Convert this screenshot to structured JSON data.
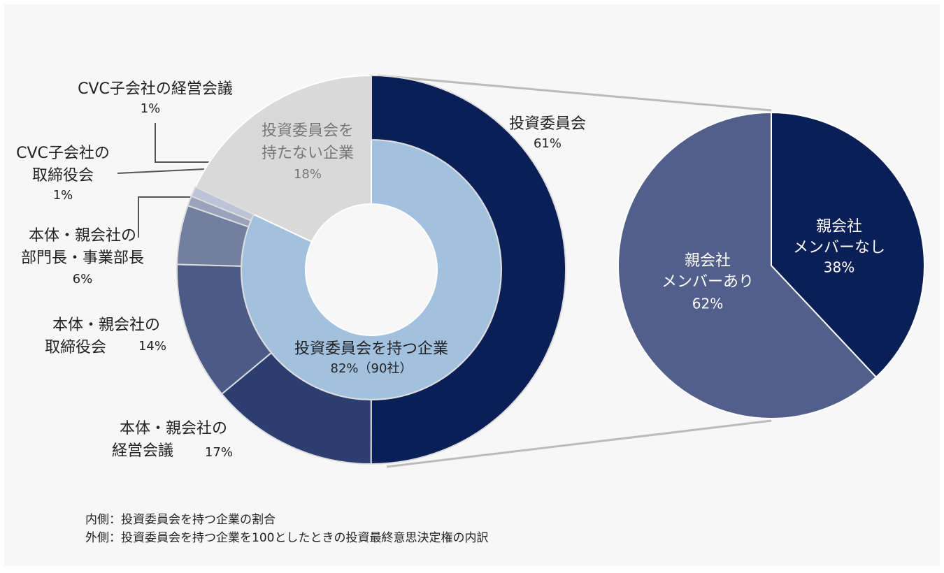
{
  "chart_data": [
    {
      "type": "donut",
      "inner": {
        "categories": [
          "投資委員会を持つ企業",
          "投資委員会を\n持たない企業"
        ],
        "values": [
          82,
          18
        ],
        "value_labels": [
          "82%（90社）",
          "18%"
        ],
        "colors": [
          "#a2c1df",
          "#d9d9d9"
        ]
      },
      "outer": {
        "categories": [
          "投資委員会",
          "本体・親会社の\n経営会議",
          "本体・親会社の\n取締役会",
          "本体・親会社の\n部門長・事業部長",
          "CVC子会社の\n取締役会",
          "CVC子会社の経営会議"
        ],
        "values": [
          61,
          17,
          14,
          6,
          1,
          1
        ],
        "value_labels": [
          "61%",
          "17%",
          "14%",
          "6%",
          "1%",
          "1%"
        ],
        "colors": [
          "#0b1f57",
          "#2c3d70",
          "#4c5b86",
          "#737f9f",
          "#9aa3bc",
          "#bcc3d6"
        ]
      }
    },
    {
      "type": "pie",
      "categories": [
        "親会社\nメンバーなし",
        "親会社\nメンバーあり"
      ],
      "values": [
        38,
        62
      ],
      "value_labels": [
        "38%",
        "62%"
      ],
      "colors": [
        "#0b1f57",
        "#515f8a"
      ]
    }
  ],
  "notes": [
    "内側：投資委員会を持つ企業の割合",
    "外側：投資委員会を持つ企業を100としたときの投資最終意思決定権の内訳"
  ]
}
